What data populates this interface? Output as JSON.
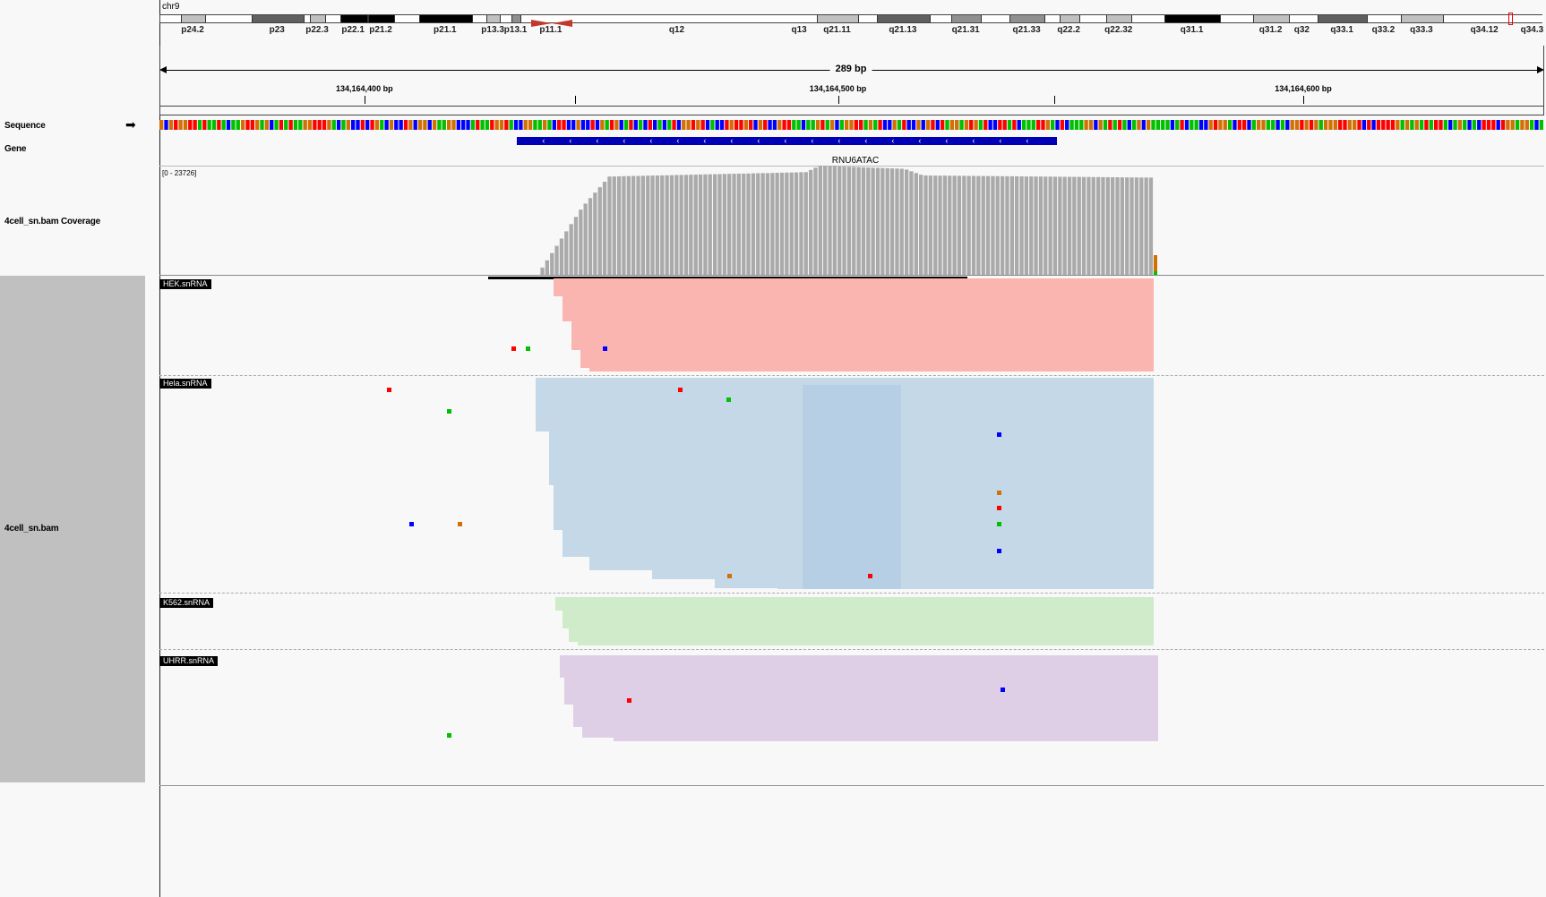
{
  "locus": {
    "chromosome": "chr9",
    "span_label": "289 bp"
  },
  "ideogram_bands": [
    {
      "label": "p24.2",
      "start": 0.015,
      "end": 0.033,
      "stain": "gpos25"
    },
    {
      "label": "p23",
      "start": 0.066,
      "end": 0.104,
      "stain": "gpos75"
    },
    {
      "label": "p22.3",
      "start": 0.108,
      "end": 0.12,
      "stain": "gpos25"
    },
    {
      "label": "p22.1",
      "start": 0.13,
      "end": 0.15,
      "stain": "gpos100"
    },
    {
      "label": "p21.2",
      "start": 0.15,
      "end": 0.17,
      "stain": "gpos100"
    },
    {
      "label": "p21.1",
      "start": 0.187,
      "end": 0.226,
      "stain": "gpos100"
    },
    {
      "label": "p13.3",
      "start": 0.236,
      "end": 0.246,
      "stain": "gpos25"
    },
    {
      "label": "p13.1",
      "start": 0.254,
      "end": 0.261,
      "stain": "gpos50"
    },
    {
      "label": "p11.1",
      "start": 0.268,
      "end": 0.298,
      "stain": "acen"
    },
    {
      "label": "q12",
      "start": 0.298,
      "end": 0.45,
      "stain": "gvar"
    },
    {
      "label": "q13",
      "start": 0.45,
      "end": 0.475,
      "stain": "gneg"
    },
    {
      "label": "q21.11",
      "start": 0.475,
      "end": 0.505,
      "stain": "gpos25"
    },
    {
      "label": "q21.13",
      "start": 0.518,
      "end": 0.557,
      "stain": "gpos75"
    },
    {
      "label": "q21.31",
      "start": 0.572,
      "end": 0.594,
      "stain": "gpos50"
    },
    {
      "label": "q21.33",
      "start": 0.614,
      "end": 0.64,
      "stain": "gpos50"
    },
    {
      "label": "q22.2",
      "start": 0.65,
      "end": 0.665,
      "stain": "gpos25"
    },
    {
      "label": "q22.32",
      "start": 0.684,
      "end": 0.703,
      "stain": "gpos25"
    },
    {
      "label": "q31.1",
      "start": 0.726,
      "end": 0.767,
      "stain": "gpos100"
    },
    {
      "label": "q31.2",
      "start": 0.79,
      "end": 0.817,
      "stain": "gpos25"
    },
    {
      "label": "q32",
      "start": 0.817,
      "end": 0.835,
      "stain": "gneg"
    },
    {
      "label": "q33.1",
      "start": 0.837,
      "end": 0.873,
      "stain": "gpos75"
    },
    {
      "label": "q33.2",
      "start": 0.873,
      "end": 0.897,
      "stain": "gneg"
    },
    {
      "label": "q33.3",
      "start": 0.897,
      "end": 0.928,
      "stain": "gpos25"
    },
    {
      "label": "q34.12",
      "start": 0.951,
      "end": 0.965,
      "stain": "gneg"
    },
    {
      "label": "q34.3",
      "start": 0.985,
      "end": 1.0,
      "stain": "gneg"
    }
  ],
  "ruler": {
    "ticks": [
      {
        "label": "134,164,400 bp",
        "x": 0.148
      },
      {
        "label": "",
        "x": 0.3
      },
      {
        "label": "134,164,500 bp",
        "x": 0.49
      },
      {
        "label": "",
        "x": 0.646
      },
      {
        "label": "134,164,600 bp",
        "x": 0.826
      }
    ]
  },
  "track_names": {
    "sequence": "Sequence",
    "gene": "Gene",
    "coverage": "4cell_sn.bam Coverage",
    "alignment": "4cell_sn.bam"
  },
  "gene": {
    "name": "RNU6ATAC",
    "strand": "-",
    "start": 0.258,
    "end": 0.648
  },
  "coverage": {
    "range_label": "[0 - 23726]"
  },
  "read_groups": [
    {
      "label": "HEK.snRNA",
      "color": "#fbb5b0"
    },
    {
      "label": "Hela.snRNA",
      "color": "#c5d8e8"
    },
    {
      "label": "K562.snRNA",
      "color": "#cfebca"
    },
    {
      "label": "UHRR.snRNA",
      "color": "#dfcfe6"
    }
  ],
  "colors": {
    "A": "#00c000",
    "C": "#0000ff",
    "G": "#d17105",
    "T": "#ff0000"
  }
}
